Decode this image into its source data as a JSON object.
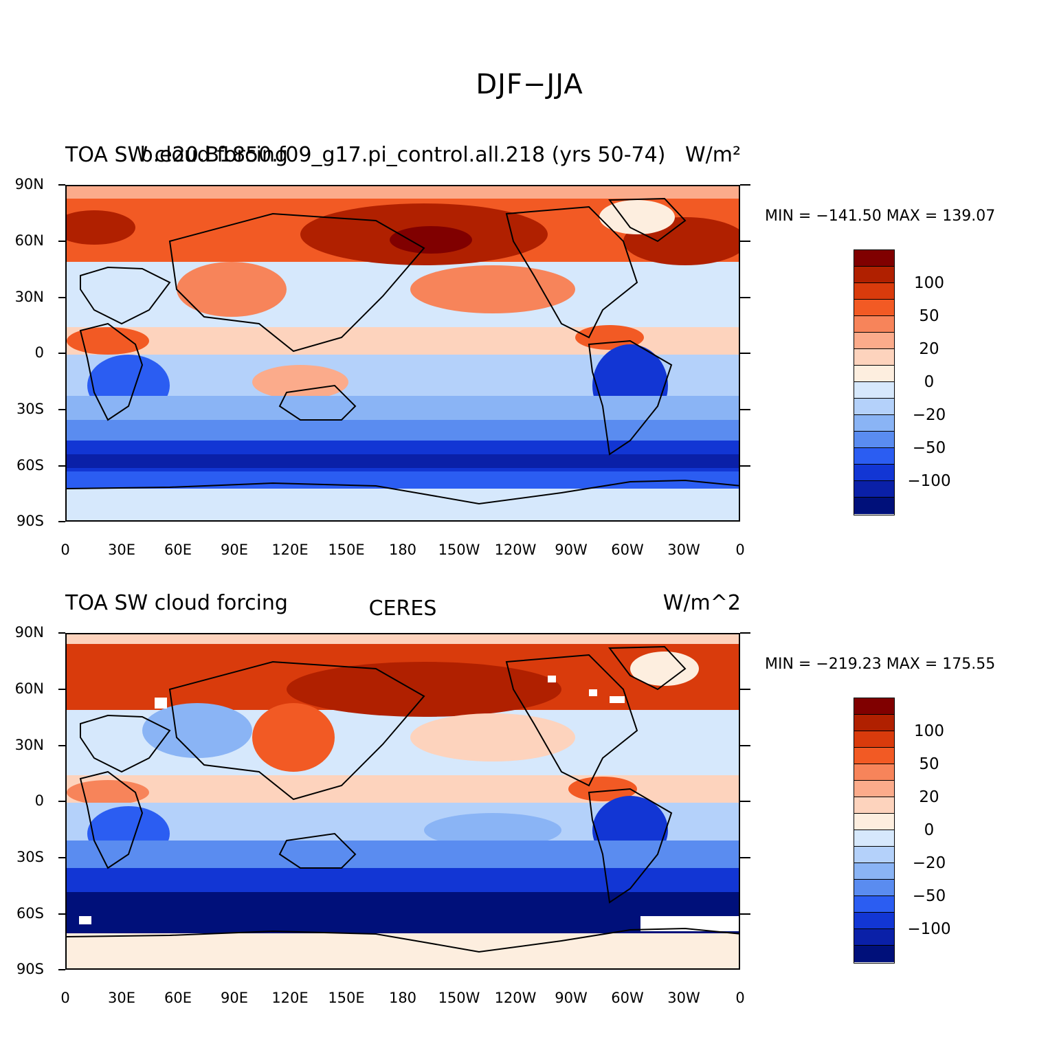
{
  "figure_title": "DJF−JJA",
  "panels": [
    {
      "left_label": "TOA SW cloud forcing",
      "center_label": "b.e20.B1850.f09_g17.pi_control.all.218 (yrs 50-74)",
      "right_label": "W/m²",
      "min_max": "MIN = −141.50  MAX = 139.07"
    },
    {
      "left_label": "TOA SW cloud forcing",
      "center_label": "CERES",
      "right_label": "W/m^2",
      "min_max": "MIN = −219.23  MAX = 175.55"
    }
  ],
  "y_ticks": [
    "90N",
    "60N",
    "30N",
    "0",
    "30S",
    "60S",
    "90S"
  ],
  "x_ticks": [
    "0",
    "30E",
    "60E",
    "90E",
    "120E",
    "150E",
    "180",
    "150W",
    "120W",
    "90W",
    "60W",
    "30W",
    "0"
  ],
  "colorbar": {
    "colors": [
      "#800000",
      "#b02000",
      "#d93b0c",
      "#f25a24",
      "#f7845a",
      "#fbab8b",
      "#fdd3bd",
      "#fdeedf",
      "#d6e8fc",
      "#b4d1fa",
      "#8ab4f5",
      "#5a8cf0",
      "#2b5df2",
      "#1236d4",
      "#0a20a8",
      "#00107a"
    ],
    "labels": [
      "100",
      "50",
      "20",
      "0",
      "−20",
      "−50",
      "−100"
    ]
  }
}
